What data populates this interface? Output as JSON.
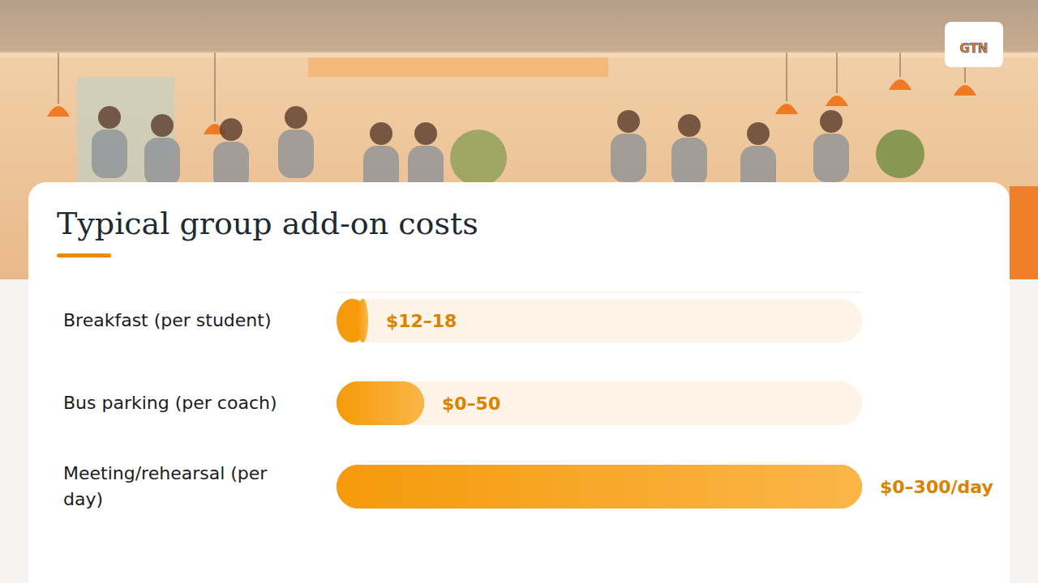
{
  "logo": "GTN",
  "chart_data": {
    "type": "bar",
    "orientation": "horizontal",
    "title": "Typical group add-on costs",
    "categories": [
      "Breakfast (per student)",
      "Bus parking (per coach)",
      "Meeting/rehearsal (per day)"
    ],
    "values": [
      18,
      50,
      300
    ],
    "low": [
      12,
      0,
      0
    ],
    "value_labels": [
      "$12–18",
      "$0–50",
      "$0–300/day"
    ],
    "xlim": [
      0,
      300
    ],
    "tick_labels": false,
    "grid": false,
    "data_labels": true,
    "color": "#f59a0a"
  }
}
